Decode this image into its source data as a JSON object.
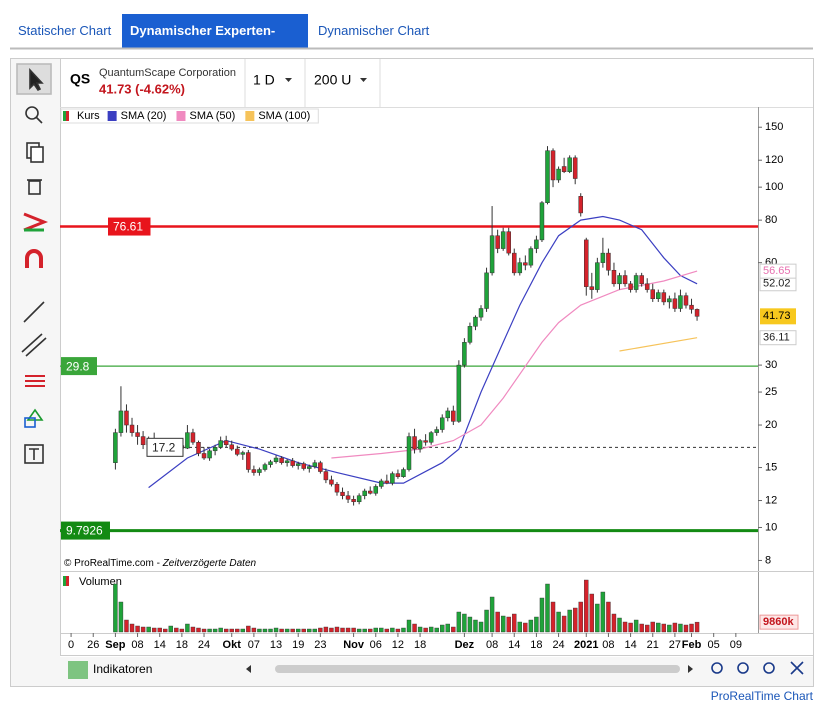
{
  "tabs": [
    "Statischer Chart",
    "Dynamischer Experten-Chart",
    "Dynamischer Chart"
  ],
  "header": {
    "symbol": "QS",
    "name": "QuantumScape Corporation",
    "price": "41.73 (-4.62%)",
    "interval": "1 D",
    "units": "200 U"
  },
  "chart_data": {
    "type": "candlestick",
    "log_scale": true,
    "ylim": [
      7.5,
      172
    ],
    "yticks": [
      8,
      10,
      12,
      15,
      20,
      25,
      30,
      60,
      80,
      100,
      120,
      150
    ],
    "xlim": [
      -10,
      116
    ],
    "xticks": [
      {
        "value": -8,
        "label": "0"
      },
      {
        "value": -4,
        "label": "26"
      },
      {
        "value": 0,
        "label": "Sep"
      },
      {
        "value": 4,
        "label": "08"
      },
      {
        "value": 8,
        "label": "14"
      },
      {
        "value": 12,
        "label": "18"
      },
      {
        "value": 16,
        "label": "24"
      },
      {
        "value": 21,
        "label": "Okt"
      },
      {
        "value": 25,
        "label": "07"
      },
      {
        "value": 29,
        "label": "13"
      },
      {
        "value": 33,
        "label": "19"
      },
      {
        "value": 37,
        "label": "23"
      },
      {
        "value": 43,
        "label": "Nov"
      },
      {
        "value": 47,
        "label": "06"
      },
      {
        "value": 51,
        "label": "12"
      },
      {
        "value": 55,
        "label": "18"
      },
      {
        "value": 63,
        "label": "Dez"
      },
      {
        "value": 68,
        "label": "08"
      },
      {
        "value": 72,
        "label": "14"
      },
      {
        "value": 76,
        "label": "18"
      },
      {
        "value": 80,
        "label": "24"
      },
      {
        "value": 85,
        "label": "2021"
      },
      {
        "value": 89,
        "label": "08"
      },
      {
        "value": 93,
        "label": "14"
      },
      {
        "value": 97,
        "label": "21"
      },
      {
        "value": 101,
        "label": "27"
      },
      {
        "value": 104,
        "label": "Feb"
      },
      {
        "value": 108,
        "label": "05"
      },
      {
        "value": 112,
        "label": "09"
      }
    ],
    "legend": "Kurs",
    "up_color": "#1fa33a",
    "down_color": "#d4222b",
    "candles": [
      [
        15.5,
        19.5,
        14.8,
        19
      ],
      [
        19,
        26,
        18.5,
        22
      ],
      [
        22,
        23,
        19,
        20
      ],
      [
        20,
        21,
        18.5,
        19
      ],
      [
        19,
        20,
        17.5,
        18.5
      ],
      [
        18.5,
        19.2,
        17,
        17.5
      ],
      [
        17.5,
        18.5,
        17,
        18
      ],
      [
        18,
        19,
        17.3,
        17.6
      ],
      [
        17.6,
        18.2,
        16.8,
        17.2
      ],
      [
        17.2,
        17.8,
        16.5,
        17
      ],
      [
        17,
        18,
        16.8,
        17.8
      ],
      [
        17.8,
        18.3,
        17,
        17.4
      ],
      [
        17.4,
        17.9,
        16.8,
        17.1
      ],
      [
        17.1,
        20,
        17,
        19
      ],
      [
        19,
        19.5,
        17.5,
        17.8
      ],
      [
        17.8,
        18,
        16.2,
        16.5
      ],
      [
        16.5,
        17.2,
        15.8,
        16
      ],
      [
        16,
        17,
        15.7,
        16.8
      ],
      [
        16.8,
        17.5,
        16.3,
        17.2
      ],
      [
        17.2,
        18.5,
        17,
        18
      ],
      [
        18,
        18.6,
        17.2,
        17.5
      ],
      [
        17.5,
        18,
        16.8,
        17
      ],
      [
        17,
        17.4,
        16.2,
        16.4
      ],
      [
        16.4,
        16.8,
        15.8,
        16.6
      ],
      [
        16.6,
        16.9,
        14.5,
        14.8
      ],
      [
        14.8,
        15.2,
        14.2,
        14.5
      ],
      [
        14.5,
        15,
        14.2,
        14.8
      ],
      [
        14.8,
        15.5,
        14.6,
        15.3
      ],
      [
        15.3,
        15.8,
        15,
        15.6
      ],
      [
        15.6,
        16.3,
        15.4,
        16
      ],
      [
        16,
        16.2,
        15.3,
        15.5
      ],
      [
        15.5,
        15.9,
        15.1,
        15.7
      ],
      [
        15.7,
        16,
        15,
        15.2
      ],
      [
        15.2,
        15.6,
        14.8,
        15.4
      ],
      [
        15.4,
        15.6,
        14.7,
        14.9
      ],
      [
        14.9,
        15.3,
        14.5,
        15.1
      ],
      [
        15.1,
        15.8,
        14.9,
        15.5
      ],
      [
        15.5,
        15.7,
        14.4,
        14.6
      ],
      [
        14.6,
        14.9,
        13.5,
        13.8
      ],
      [
        13.8,
        14.2,
        13.2,
        13.4
      ],
      [
        13.4,
        13.6,
        12.4,
        12.7
      ],
      [
        12.7,
        13.1,
        12.1,
        12.4
      ],
      [
        12.4,
        12.8,
        11.8,
        12.1
      ],
      [
        12.1,
        12.4,
        11.6,
        11.9
      ],
      [
        11.9,
        12.6,
        11.7,
        12.4
      ],
      [
        12.4,
        13,
        12.1,
        12.8
      ],
      [
        12.8,
        13.2,
        12.5,
        12.6
      ],
      [
        12.6,
        13.4,
        12.4,
        13.2
      ],
      [
        13.2,
        13.9,
        13,
        13.7
      ],
      [
        13.7,
        14.3,
        13.4,
        13.5
      ],
      [
        13.5,
        14.6,
        13.3,
        14.4
      ],
      [
        14.4,
        14.8,
        13.9,
        14.1
      ],
      [
        14.1,
        15,
        14,
        14.8
      ],
      [
        14.8,
        19,
        14.6,
        18.5
      ],
      [
        18.5,
        19.5,
        16.5,
        17
      ],
      [
        17,
        18.2,
        16.6,
        18
      ],
      [
        18,
        18.8,
        17.4,
        17.8
      ],
      [
        17.8,
        19.2,
        17.5,
        19
      ],
      [
        19,
        19.8,
        18.6,
        19.4
      ],
      [
        19.4,
        21.5,
        19,
        21
      ],
      [
        21,
        22.5,
        20.5,
        22
      ],
      [
        22,
        22.8,
        20,
        20.5
      ],
      [
        20.5,
        31,
        20.3,
        30
      ],
      [
        30,
        36,
        29.5,
        35
      ],
      [
        35,
        40,
        34.5,
        39
      ],
      [
        39,
        42,
        38,
        41.5
      ],
      [
        41.5,
        45,
        40.5,
        44
      ],
      [
        44,
        58,
        43,
        56
      ],
      [
        56,
        88,
        55,
        72
      ],
      [
        72,
        75,
        64,
        66
      ],
      [
        66,
        76,
        65,
        74
      ],
      [
        74,
        76,
        63,
        64
      ],
      [
        64,
        66,
        55,
        56
      ],
      [
        56,
        62,
        55,
        60
      ],
      [
        60,
        63,
        57,
        59
      ],
      [
        59,
        67,
        58,
        66
      ],
      [
        66,
        72,
        64,
        70
      ],
      [
        70,
        91,
        69,
        90
      ],
      [
        90,
        132,
        89,
        128
      ],
      [
        128,
        130,
        100,
        105
      ],
      [
        105,
        115,
        103,
        113
      ],
      [
        115,
        122,
        110,
        111
      ],
      [
        111,
        124,
        110,
        122
      ],
      [
        122,
        124,
        102,
        106
      ],
      [
        94,
        96,
        82,
        84
      ],
      [
        70,
        71,
        48,
        51
      ],
      [
        51,
        56,
        47,
        50
      ],
      [
        50,
        62,
        49,
        60
      ],
      [
        60,
        71,
        58,
        64
      ],
      [
        64,
        66,
        55,
        57
      ],
      [
        57,
        60,
        51,
        52
      ],
      [
        52,
        56,
        50,
        55
      ],
      [
        55,
        57,
        51,
        52
      ],
      [
        52,
        53,
        49,
        50
      ],
      [
        50,
        56,
        49,
        55
      ],
      [
        55,
        56,
        51,
        52
      ],
      [
        52,
        54,
        49,
        50
      ],
      [
        50,
        52,
        46,
        47
      ],
      [
        47,
        50,
        46,
        49
      ],
      [
        49,
        50,
        45,
        46
      ],
      [
        46,
        48,
        44,
        47
      ],
      [
        47,
        49,
        43,
        44
      ],
      [
        44,
        50,
        43,
        48
      ],
      [
        48,
        49,
        44,
        45
      ],
      [
        45,
        47,
        42.5,
        43.75
      ],
      [
        43.75,
        44,
        40.5,
        41.73
      ]
    ],
    "series": [
      {
        "name": "SMA (20)",
        "color": "#3b3fc2",
        "x": [
          6,
          13,
          20,
          26,
          33,
          40,
          48,
          52,
          59,
          62,
          66,
          70,
          73,
          77,
          80,
          84,
          88,
          91,
          95,
          99,
          102,
          105
        ],
        "values": [
          13.1,
          16,
          18,
          17,
          15.5,
          14.5,
          13.5,
          13.5,
          15.5,
          17,
          25,
          35,
          45,
          60,
          72,
          80,
          82,
          80,
          75,
          62,
          55,
          52.02
        ]
      },
      {
        "name": "SMA (50)",
        "color": "#f08ac0",
        "x": [
          39,
          48,
          55,
          61,
          66,
          70,
          77,
          80,
          84,
          91,
          99,
          105
        ],
        "values": [
          16,
          16.5,
          17,
          18,
          20,
          24,
          35,
          40,
          45,
          50,
          53,
          56.65
        ]
      },
      {
        "name": "SMA (100)",
        "color": "#f6c35a",
        "x": [
          91,
          105
        ],
        "values": [
          33,
          36.11
        ]
      }
    ],
    "levels": [
      {
        "value": 76.61,
        "color": "#e8141c"
      },
      {
        "value": 29.8,
        "color": "#3aa63a"
      },
      {
        "value": 9.7926,
        "color": "#138a13"
      },
      {
        "value": 17.2,
        "color": "#333333",
        "dashed": true
      }
    ],
    "copyright": "© ProRealTime.com - ",
    "copyright_note": "Zeitverzögerte Daten",
    "volume": {
      "name": "Volumen",
      "ylim": [
        0,
        56000000
      ],
      "last_label": "9860k",
      "values": [
        48000000,
        30000000,
        12000000,
        8000000,
        6000000,
        5000000,
        5000000,
        4000000,
        4000000,
        3000000,
        6000000,
        4000000,
        3000000,
        8000000,
        5000000,
        4000000,
        3000000,
        3000000,
        3000000,
        4000000,
        3000000,
        3000000,
        3000000,
        3000000,
        6000000,
        4000000,
        3000000,
        3000000,
        3000000,
        4000000,
        3000000,
        3000000,
        3000000,
        3000000,
        3000000,
        3000000,
        3000000,
        4000000,
        5000000,
        4000000,
        5000000,
        4000000,
        4000000,
        4000000,
        3000000,
        3000000,
        3000000,
        4000000,
        4000000,
        3000000,
        4000000,
        3000000,
        4000000,
        12000000,
        8000000,
        5000000,
        4000000,
        5000000,
        4000000,
        7000000,
        8000000,
        5000000,
        20000000,
        18000000,
        15000000,
        12000000,
        10000000,
        22000000,
        35000000,
        20000000,
        16000000,
        15000000,
        18000000,
        10000000,
        9000000,
        12000000,
        15000000,
        34000000,
        48000000,
        30000000,
        20000000,
        16000000,
        22000000,
        24000000,
        30000000,
        52000000,
        38000000,
        28000000,
        40000000,
        30000000,
        18000000,
        14000000,
        10000000,
        9000000,
        12000000,
        8000000,
        7000000,
        10000000,
        9000000,
        8000000,
        7000000,
        9000000,
        8000000,
        7000000,
        8000000,
        9860000
      ]
    }
  },
  "footer": {
    "indicators": "Indikatoren",
    "brand": "ProRealTime Chart"
  }
}
